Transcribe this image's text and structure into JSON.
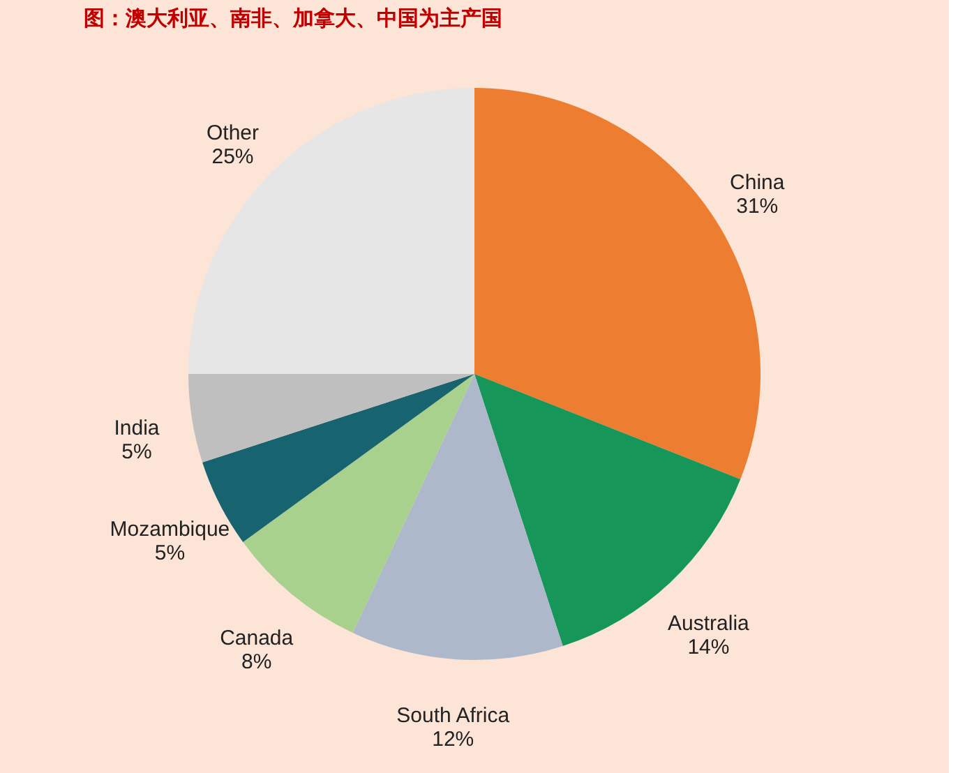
{
  "chart_data": {
    "type": "pie",
    "title": "图：澳大利亚、南非、加拿大、中国为主产国",
    "categories": [
      "China",
      "Australia",
      "South Africa",
      "Canada",
      "Mozambique",
      "India",
      "Other"
    ],
    "values": [
      31,
      14,
      12,
      8,
      5,
      5,
      25
    ],
    "value_labels": [
      "31%",
      "14%",
      "12%",
      "8%",
      "5%",
      "5%",
      "25%"
    ],
    "colors": [
      "#ed7d31",
      "#17965a",
      "#adb9ca",
      "#a9d18e",
      "#17636f",
      "#bfbfbf",
      "#e6e6e6"
    ],
    "legend": false
  }
}
